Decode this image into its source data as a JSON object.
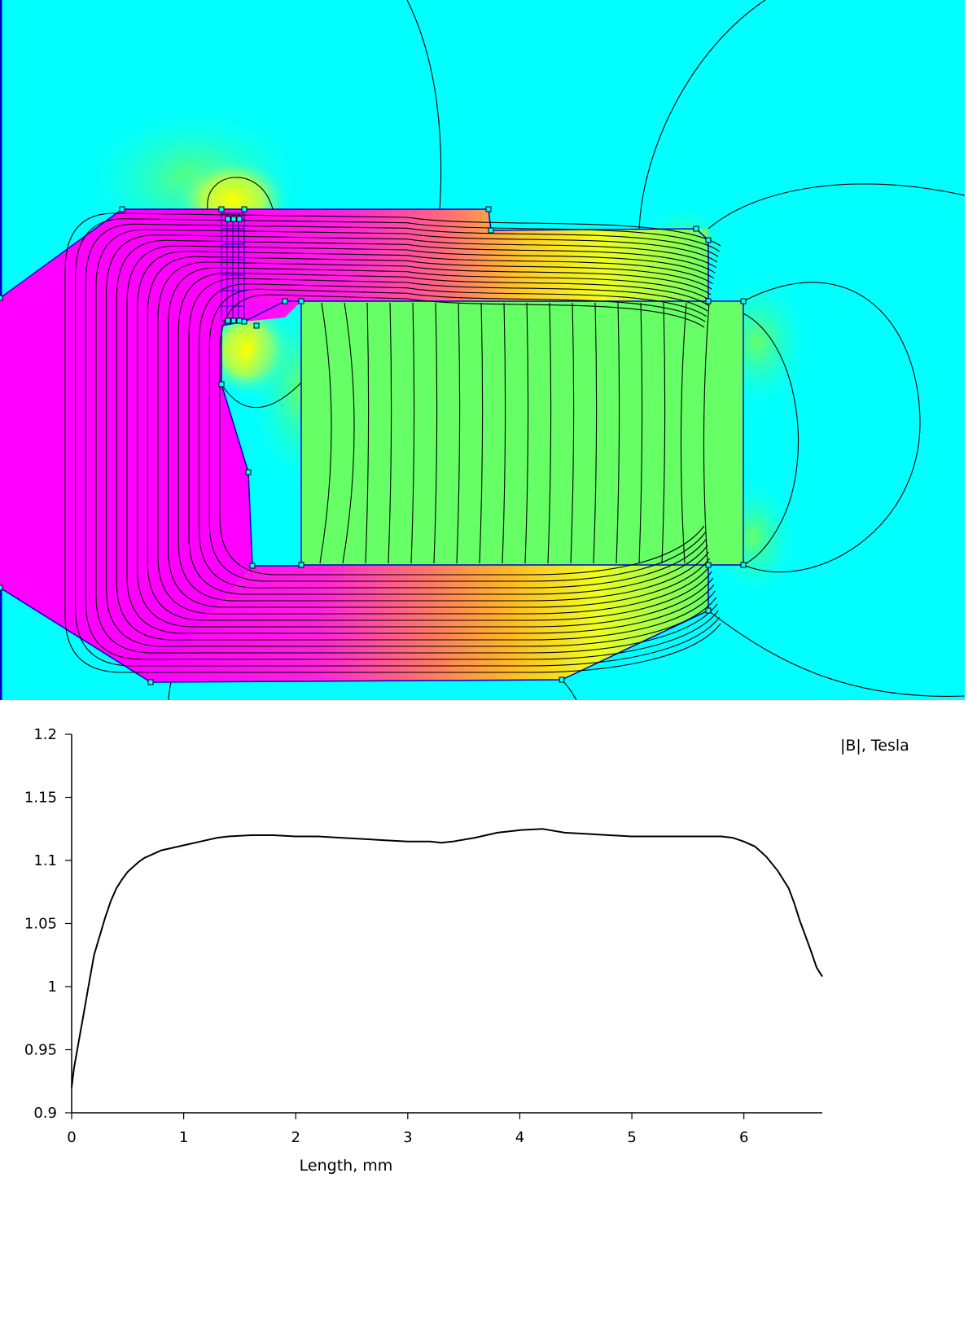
{
  "field_plot": {
    "colors": {
      "air": "#00ffff",
      "low": "#66ff66",
      "mid": "#ffff00",
      "high": "#ff00ff",
      "boundary": "#0000cc",
      "flux_line": "#000000"
    }
  },
  "chart_data": {
    "type": "line",
    "title": "",
    "xlabel": "Length, mm",
    "ylabel": "|B|, Tesla",
    "xlim": [
      0,
      6.7
    ],
    "ylim": [
      0.9,
      1.2
    ],
    "xticks": [
      0,
      1,
      2,
      3,
      4,
      5,
      6
    ],
    "yticks": [
      0.9,
      0.95,
      1,
      1.05,
      1.1,
      1.15,
      1.2
    ],
    "ytick_labels": [
      "0.9",
      "0.95",
      "1",
      "1.05",
      "1.1",
      "1.15",
      "1.2"
    ],
    "grid": false,
    "series": [
      {
        "color": "#000000",
        "x": [
          0,
          0.02,
          0.05,
          0.1,
          0.15,
          0.2,
          0.25,
          0.3,
          0.35,
          0.4,
          0.45,
          0.5,
          0.55,
          0.6,
          0.65,
          0.7,
          0.8,
          0.9,
          1.0,
          1.1,
          1.2,
          1.3,
          1.4,
          1.6,
          1.8,
          2.0,
          2.2,
          2.4,
          2.6,
          2.8,
          3.0,
          3.2,
          3.3,
          3.4,
          3.6,
          3.8,
          4.0,
          4.2,
          4.4,
          4.6,
          4.8,
          5.0,
          5.2,
          5.4,
          5.6,
          5.8,
          5.9,
          6.0,
          6.1,
          6.2,
          6.3,
          6.4,
          6.45,
          6.5,
          6.55,
          6.6,
          6.65,
          6.7
        ],
        "y": [
          0.92,
          0.935,
          0.95,
          0.975,
          1.0,
          1.025,
          1.04,
          1.055,
          1.068,
          1.078,
          1.085,
          1.091,
          1.095,
          1.099,
          1.102,
          1.104,
          1.108,
          1.11,
          1.112,
          1.114,
          1.116,
          1.118,
          1.119,
          1.12,
          1.12,
          1.119,
          1.119,
          1.118,
          1.117,
          1.116,
          1.115,
          1.115,
          1.114,
          1.115,
          1.118,
          1.122,
          1.124,
          1.125,
          1.122,
          1.121,
          1.12,
          1.119,
          1.119,
          1.119,
          1.119,
          1.119,
          1.118,
          1.115,
          1.111,
          1.103,
          1.092,
          1.078,
          1.066,
          1.052,
          1.04,
          1.028,
          1.015,
          1.008
        ]
      }
    ]
  }
}
